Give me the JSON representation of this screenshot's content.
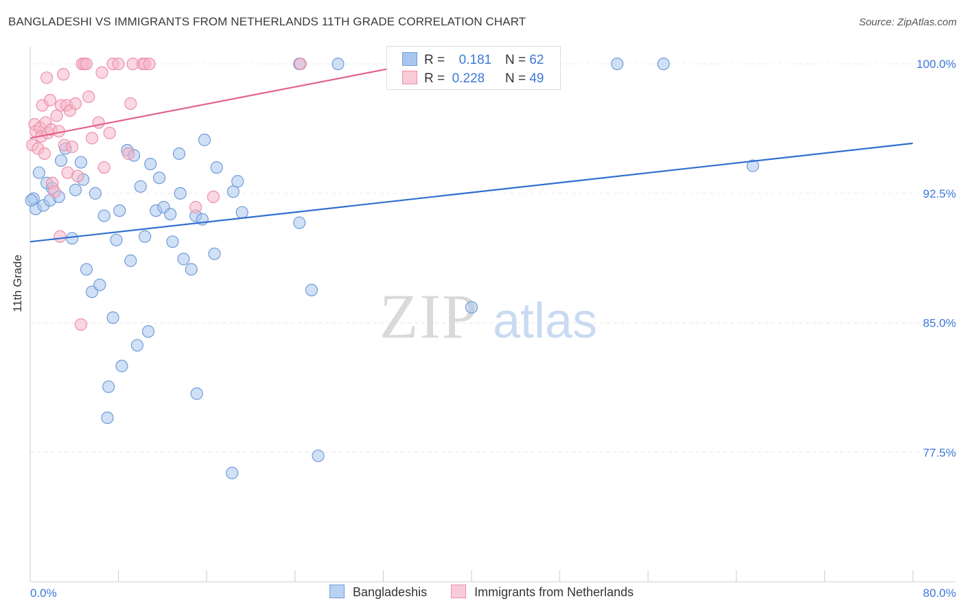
{
  "header": {
    "title": "BANGLADESHI VS IMMIGRANTS FROM NETHERLANDS 11TH GRADE CORRELATION CHART",
    "source": "Source: ZipAtlas.com"
  },
  "watermark": {
    "zip": "ZIP",
    "atlas": "atlas"
  },
  "legend_box": {
    "rows": [
      {
        "r_label": "R =",
        "r_value": "0.181",
        "n_label": "N =",
        "n_value": "62"
      },
      {
        "r_label": "R =",
        "r_value": "0.228",
        "n_label": "N =",
        "n_value": "49"
      }
    ]
  },
  "bottom_legend": [
    "Bangladeshis",
    "Immigrants from Netherlands"
  ],
  "colors": {
    "blue_fill": "#a9c7ee",
    "blue_stroke": "#6f9bd8",
    "blue_line": "#2f6fcf",
    "pink_fill": "#f6b6c9",
    "pink_stroke": "#ec8fae",
    "pink_line": "#e3628c",
    "tick_text": "#3c78d8",
    "grid": "#e6e6e6"
  },
  "chart_data": {
    "type": "scatter",
    "title": "BANGLADESHI VS IMMIGRANTS FROM NETHERLANDS 11TH GRADE CORRELATION CHART",
    "xlabel": "",
    "ylabel": "11th Grade",
    "xlim": [
      0,
      80
    ],
    "ylim": [
      70.0,
      101.0
    ],
    "x_tick_labels": [
      "0.0%",
      "80.0%"
    ],
    "y_ticks": [
      77.5,
      85.0,
      92.5,
      100.0
    ],
    "y_tick_labels": [
      "77.5%",
      "85.0%",
      "92.5%",
      "100.0%"
    ],
    "grid": true,
    "series": [
      {
        "name": "Bangladeshis",
        "r": 0.181,
        "n": 62,
        "trend": {
          "x": [
            0,
            80
          ],
          "y": [
            89.7,
            95.4
          ]
        },
        "points": [
          [
            0.3,
            92.2
          ],
          [
            0.5,
            91.6
          ],
          [
            0.8,
            93.7
          ],
          [
            1.2,
            91.8
          ],
          [
            1.5,
            93.1
          ],
          [
            1.8,
            92.1
          ],
          [
            2.0,
            92.8
          ],
          [
            2.6,
            92.3
          ],
          [
            2.8,
            94.4
          ],
          [
            3.2,
            95.1
          ],
          [
            3.8,
            89.9
          ],
          [
            4.1,
            92.7
          ],
          [
            4.6,
            94.3
          ],
          [
            4.8,
            93.3
          ],
          [
            5.1,
            88.1
          ],
          [
            5.6,
            86.8
          ],
          [
            5.9,
            92.5
          ],
          [
            6.3,
            87.2
          ],
          [
            6.7,
            91.2
          ],
          [
            7.1,
            81.3
          ],
          [
            7.0,
            79.5
          ],
          [
            7.5,
            85.3
          ],
          [
            7.8,
            89.8
          ],
          [
            8.1,
            91.5
          ],
          [
            8.3,
            82.5
          ],
          [
            8.8,
            95.0
          ],
          [
            9.1,
            88.6
          ],
          [
            9.4,
            94.7
          ],
          [
            9.7,
            83.7
          ],
          [
            10.0,
            92.9
          ],
          [
            10.4,
            90.0
          ],
          [
            10.7,
            84.5
          ],
          [
            10.9,
            94.2
          ],
          [
            11.4,
            91.5
          ],
          [
            11.7,
            93.4
          ],
          [
            12.1,
            91.7
          ],
          [
            12.7,
            91.3
          ],
          [
            12.9,
            89.7
          ],
          [
            13.5,
            94.8
          ],
          [
            13.6,
            92.5
          ],
          [
            13.9,
            88.7
          ],
          [
            14.6,
            88.1
          ],
          [
            15.0,
            91.2
          ],
          [
            15.1,
            80.9
          ],
          [
            15.6,
            91.0
          ],
          [
            15.8,
            95.6
          ],
          [
            16.7,
            89.0
          ],
          [
            16.9,
            94.0
          ],
          [
            18.4,
            92.6
          ],
          [
            18.3,
            76.3
          ],
          [
            18.8,
            93.2
          ],
          [
            19.2,
            91.4
          ],
          [
            24.4,
            90.8
          ],
          [
            25.5,
            86.9
          ],
          [
            26.1,
            77.3
          ],
          [
            27.9,
            100.0
          ],
          [
            24.4,
            100.0
          ],
          [
            40.0,
            85.9
          ],
          [
            53.2,
            100.0
          ],
          [
            57.4,
            100.0
          ],
          [
            65.5,
            94.1
          ],
          [
            0.1,
            92.1
          ]
        ]
      },
      {
        "name": "Immigrants from Netherlands",
        "r": 0.228,
        "n": 49,
        "trend": {
          "x": [
            0,
            38
          ],
          "y": [
            95.7,
            100.4
          ]
        },
        "points": [
          [
            0.2,
            95.3
          ],
          [
            0.4,
            96.5
          ],
          [
            0.5,
            96.1
          ],
          [
            0.7,
            95.1
          ],
          [
            0.9,
            96.3
          ],
          [
            1.0,
            95.8
          ],
          [
            1.1,
            97.6
          ],
          [
            1.3,
            94.8
          ],
          [
            1.4,
            96.6
          ],
          [
            1.5,
            99.2
          ],
          [
            1.6,
            96.0
          ],
          [
            1.8,
            97.9
          ],
          [
            1.9,
            96.2
          ],
          [
            2.0,
            93.1
          ],
          [
            2.2,
            92.6
          ],
          [
            2.4,
            97.0
          ],
          [
            2.6,
            96.1
          ],
          [
            2.7,
            90.0
          ],
          [
            2.8,
            97.6
          ],
          [
            3.0,
            99.4
          ],
          [
            3.1,
            95.3
          ],
          [
            3.3,
            97.6
          ],
          [
            3.4,
            93.7
          ],
          [
            3.6,
            97.3
          ],
          [
            3.8,
            95.2
          ],
          [
            4.1,
            97.7
          ],
          [
            4.3,
            93.5
          ],
          [
            4.6,
            84.9
          ],
          [
            4.7,
            100.0
          ],
          [
            4.9,
            100.0
          ],
          [
            5.1,
            100.0
          ],
          [
            5.3,
            98.1
          ],
          [
            5.6,
            95.7
          ],
          [
            6.2,
            96.6
          ],
          [
            6.5,
            99.5
          ],
          [
            6.7,
            94.0
          ],
          [
            7.2,
            96.0
          ],
          [
            7.5,
            100.0
          ],
          [
            8.0,
            100.0
          ],
          [
            8.9,
            94.8
          ],
          [
            9.1,
            97.7
          ],
          [
            9.3,
            100.0
          ],
          [
            10.2,
            100.0
          ],
          [
            10.4,
            100.0
          ],
          [
            10.8,
            100.0
          ],
          [
            15.0,
            91.7
          ],
          [
            16.6,
            92.3
          ],
          [
            24.5,
            100.0
          ],
          [
            33.0,
            100.0
          ]
        ]
      }
    ]
  }
}
